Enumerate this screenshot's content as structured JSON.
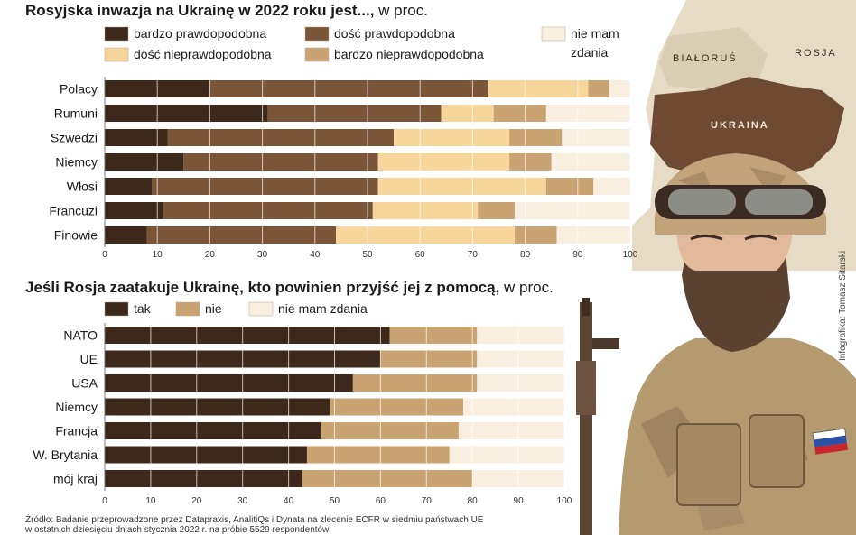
{
  "chart_data": [
    {
      "type": "bar",
      "stacked": true,
      "orientation": "horizontal",
      "title_bold": "Rosyjska inwazja na Ukrainę w 2022 roku jest...,",
      "title_suffix": " w proc.",
      "categories": [
        "Polacy",
        "Rumuni",
        "Szwedzi",
        "Niemcy",
        "Włosi",
        "Francuzi",
        "Finowie"
      ],
      "series": [
        {
          "name": "bardzo prawdopodobna",
          "color": "#3d281c",
          "values": [
            20,
            31,
            12,
            15,
            9,
            11,
            8
          ]
        },
        {
          "name": "dość prawdopodobna",
          "color": "#7a5538",
          "values": [
            53,
            33,
            43,
            37,
            43,
            40,
            36
          ]
        },
        {
          "name": "dość nieprawdopodobna",
          "color": "#f7d69b",
          "values": [
            19,
            10,
            22,
            25,
            32,
            20,
            34
          ]
        },
        {
          "name": "bardzo nieprawdopodobna",
          "color": "#c9a472",
          "values": [
            4,
            10,
            10,
            8,
            9,
            7,
            8
          ]
        },
        {
          "name": "nie mam zdania",
          "color": "#f8efe1",
          "values": [
            4,
            16,
            13,
            15,
            7,
            22,
            14
          ]
        }
      ],
      "legend_rows": [
        [
          "bardzo prawdopodobna",
          "dość prawdopodobna",
          "nie mam"
        ],
        [
          "dość nieprawdopodobna",
          "bardzo nieprawdopodobna",
          "zdania"
        ]
      ],
      "xlim": [
        0,
        100
      ],
      "xticks": [
        "0",
        "10",
        "20",
        "30",
        "40",
        "50",
        "60",
        "70",
        "80",
        "90",
        "100"
      ],
      "grid": true,
      "legend_position": "top"
    },
    {
      "type": "bar",
      "stacked": true,
      "orientation": "horizontal",
      "title_bold": "Jeśli Rosja zaatakuje Ukrainę, kto powinien przyjść jej z pomocą,",
      "title_suffix": " w proc.",
      "categories": [
        "NATO",
        "UE",
        "USA",
        "Niemcy",
        "Francja",
        "W. Brytania",
        "mój kraj"
      ],
      "series": [
        {
          "name": "tak",
          "color": "#3d281c",
          "values": [
            62,
            60,
            54,
            49,
            47,
            44,
            43
          ]
        },
        {
          "name": "nie",
          "color": "#c9a472",
          "values": [
            19,
            21,
            27,
            29,
            30,
            31,
            37
          ]
        },
        {
          "name": "nie mam zdania",
          "color": "#f8efe1",
          "values": [
            19,
            19,
            19,
            22,
            23,
            25,
            20
          ]
        }
      ],
      "xlim": [
        0,
        100
      ],
      "xticks": [
        "0",
        "10",
        "20",
        "30",
        "40",
        "50",
        "60",
        "70",
        "80",
        "90",
        "100"
      ],
      "grid": true,
      "legend_position": "top"
    }
  ],
  "map": {
    "labels": [
      "BIAŁORUŚ",
      "ROSJA",
      "UKRAINA"
    ],
    "colors": {
      "land": "#e6dcc6",
      "ukraine": "#6e4a33",
      "neighbour": "#d9cdb3"
    }
  },
  "illustration": {
    "description_icon": "soldier-icon",
    "flag_icon": "russian-flag-icon",
    "rifle_icon": "rifle-icon"
  },
  "credit": "Infografika: Tomasz Sitarski",
  "source_line1": "Źródło: Badanie przeprowadzone przez Datapraxis, AnalitiQs i Dynata na zlecenie ECFR w siedmiu państwach UE",
  "source_line2": "w ostatnich dziesięciu dniach stycznia 2022 r. na próbie 5529 respondentów"
}
